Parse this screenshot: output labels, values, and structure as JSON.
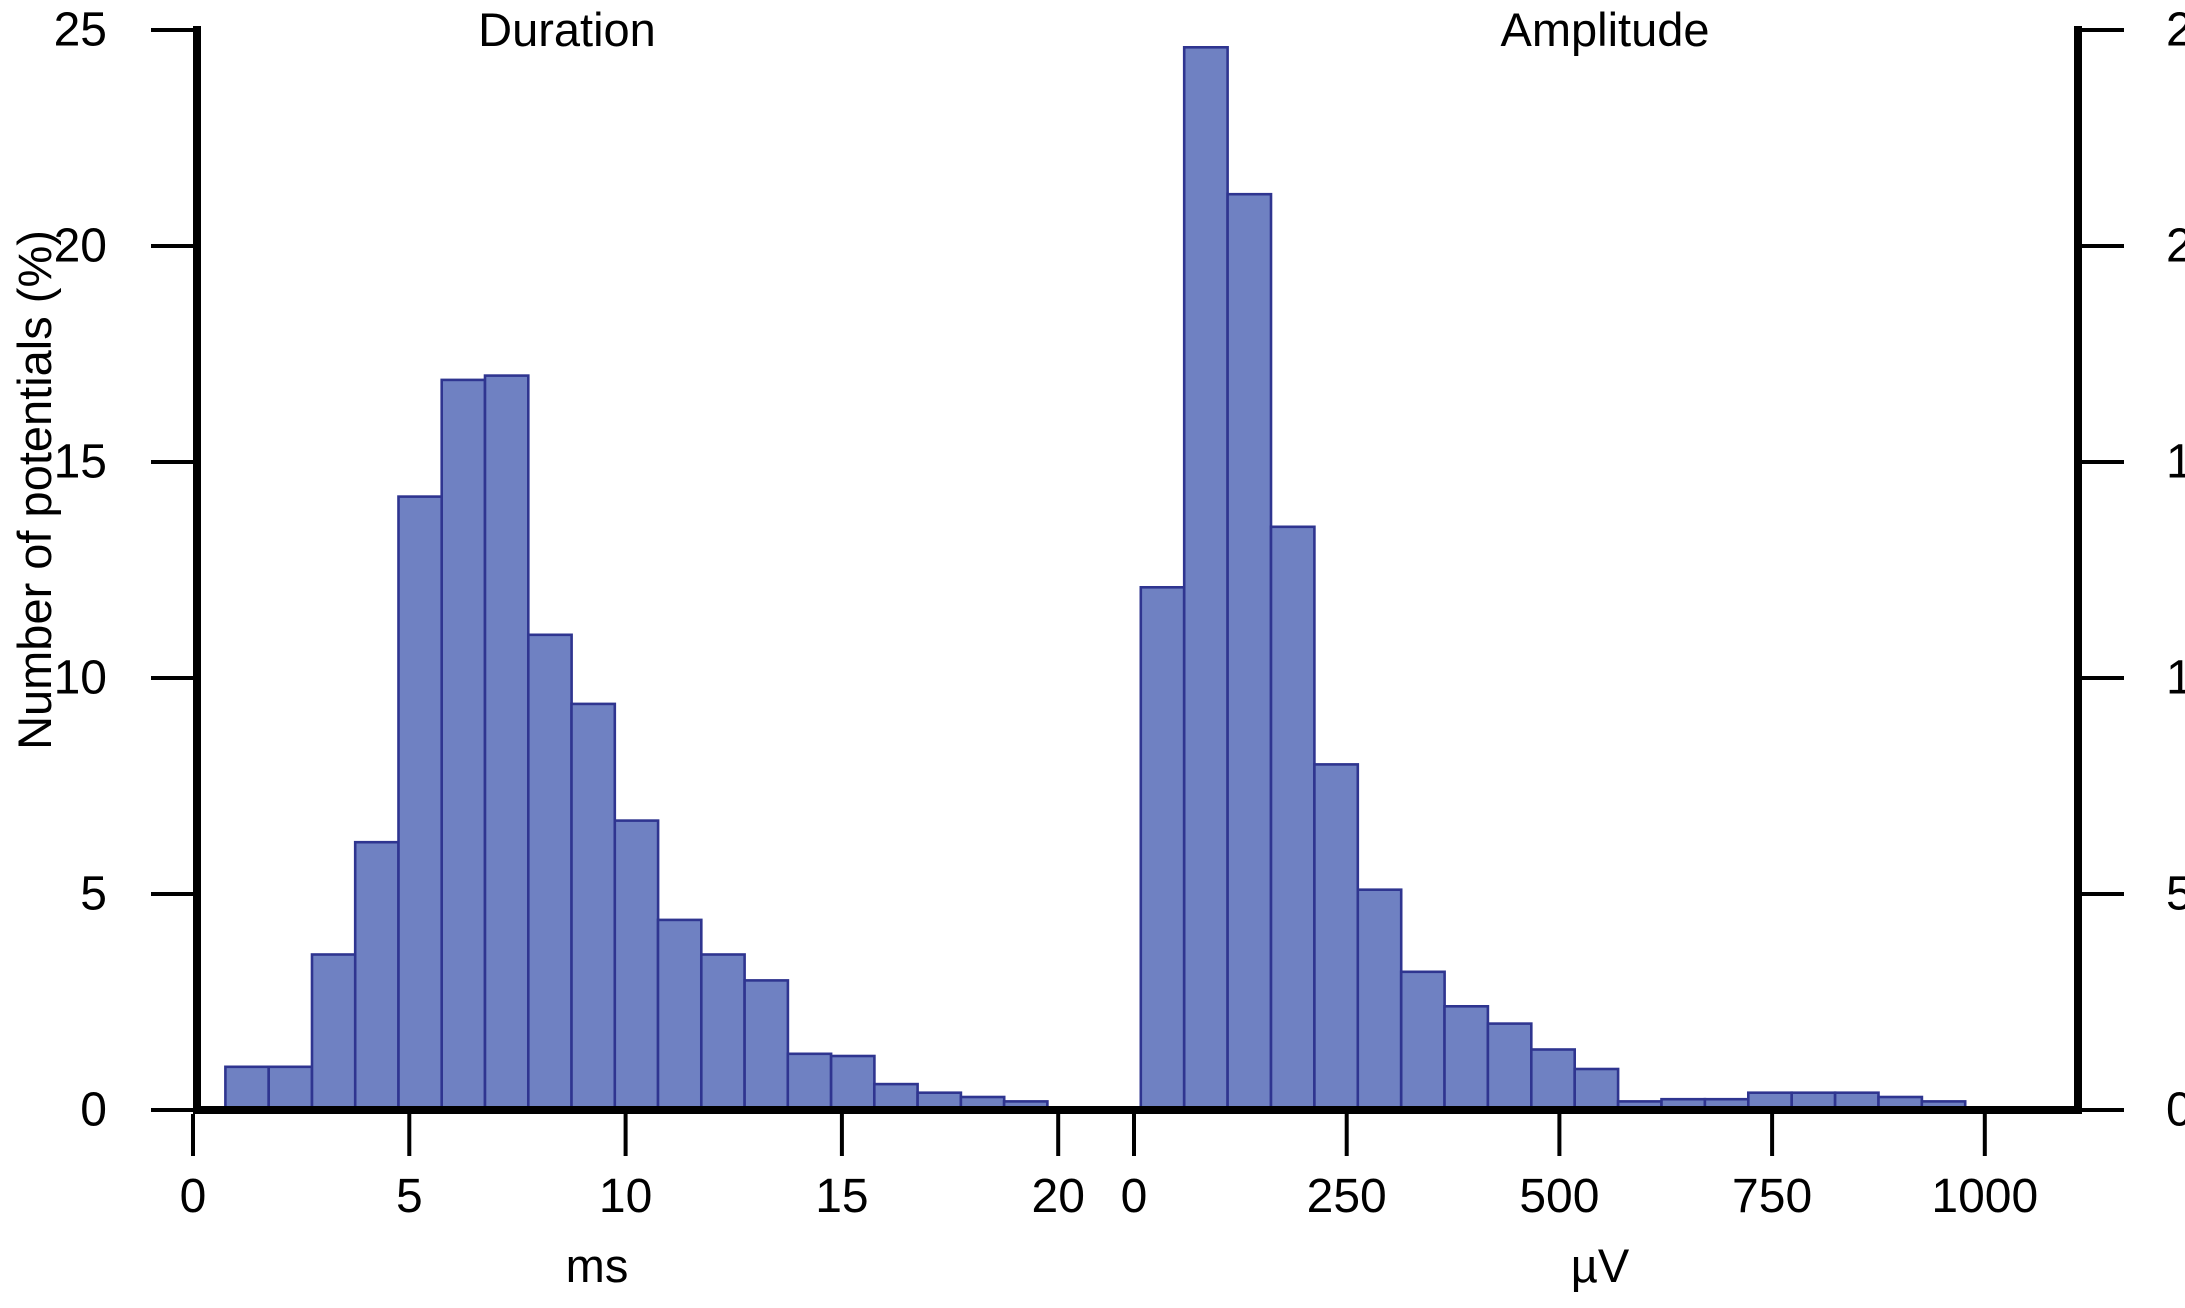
{
  "y_axis": {
    "label": "Number of potentials (%)",
    "ticks": [
      0,
      5,
      10,
      15,
      20,
      25
    ],
    "range": [
      0,
      25
    ],
    "mirrored_right_axis": true
  },
  "colors": {
    "bar_fill": "#6F81C2",
    "bar_stroke": "#2F3590",
    "axis": "#000000",
    "background": "#FFFFFF"
  },
  "chart_data": [
    {
      "type": "bar",
      "subtype": "histogram",
      "title": "Duration",
      "xlabel": "ms",
      "x_ticks": [
        0,
        5,
        10,
        15,
        20
      ],
      "x_range": [
        0,
        20.5
      ],
      "ylim": [
        0,
        25
      ],
      "grid": false,
      "legend": "none",
      "bin_start": 0.75,
      "bin_width": 1.0,
      "values": [
        1.0,
        1.0,
        3.6,
        6.2,
        14.2,
        16.9,
        17.0,
        11.0,
        9.4,
        6.7,
        4.4,
        3.6,
        3.0,
        1.3,
        1.25,
        0.6,
        0.4,
        0.3,
        0.2
      ]
    },
    {
      "type": "bar",
      "subtype": "histogram",
      "title": "Amplitude",
      "xlabel": "µV",
      "x_ticks": [
        0,
        250,
        500,
        750,
        1000
      ],
      "x_range": [
        0,
        1110
      ],
      "ylim": [
        0,
        25
      ],
      "grid": false,
      "legend": "none",
      "bin_start": 8,
      "bin_width": 51,
      "values": [
        12.1,
        24.6,
        21.2,
        13.5,
        8.0,
        5.1,
        3.2,
        2.4,
        2.0,
        1.4,
        0.95,
        0.2,
        0.25,
        0.25,
        0.4,
        0.4,
        0.4,
        0.3,
        0.2
      ]
    }
  ]
}
